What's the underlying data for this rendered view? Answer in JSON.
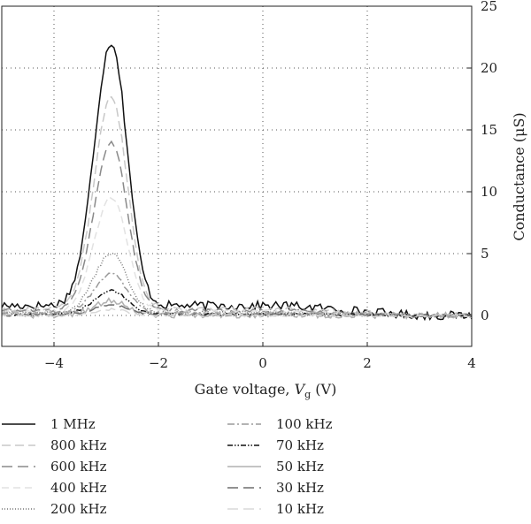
{
  "chart_data": {
    "type": "line",
    "xlabel": "Gate voltage, ",
    "xlabel_sub_symbol": "V",
    "xlabel_sub": "g",
    "xlabel_unit": " (V)",
    "ylabel": "Conductance (μS)",
    "xlim": [
      -5,
      4
    ],
    "ylim": [
      -2.5,
      25
    ],
    "x_ticks": [
      -4,
      -2,
      0,
      2,
      4
    ],
    "x_tick_labels": [
      "−4",
      "−2",
      "0",
      "2",
      "4"
    ],
    "y_ticks": [
      0,
      5,
      10,
      15,
      20,
      25
    ],
    "y_tick_labels": [
      "0",
      "5",
      "10",
      "15",
      "20",
      "25"
    ],
    "y_axis_position": "right",
    "grid": true,
    "grid_style": "dotted",
    "legend_position": "bottom",
    "peak_center": -2.9,
    "series": [
      {
        "name": "1 MHz",
        "color": "#111111",
        "dash": "",
        "peak": 21.3,
        "baseline": 0.8,
        "noise": 0.35
      },
      {
        "name": "800 kHz",
        "color": "#c8c8c8",
        "dash": "10,5",
        "peak": 17.2,
        "baseline": 0.5,
        "noise": 0.2
      },
      {
        "name": "600 kHz",
        "color": "#8a8a8a",
        "dash": "12,6",
        "peak": 13.6,
        "baseline": 0.4,
        "noise": 0.15
      },
      {
        "name": "400 kHz",
        "color": "#e2e2e2",
        "dash": "8,5",
        "peak": 9.3,
        "baseline": 0.3,
        "noise": 0.15
      },
      {
        "name": "200 kHz",
        "color": "#777777",
        "dash": "1,2",
        "peak": 4.8,
        "baseline": 0.2,
        "noise": 0.15
      },
      {
        "name": "100 kHz",
        "color": "#9a9a9a",
        "dash": "8,3,2,3",
        "peak": 3.2,
        "baseline": 0.15,
        "noise": 0.12
      },
      {
        "name": "70 kHz",
        "color": "#111111",
        "dash": "6,2,1.5,2,1.5,2",
        "peak": 1.9,
        "baseline": 0.1,
        "noise": 0.1
      },
      {
        "name": "50 kHz",
        "color": "#b0b0b0",
        "dash": "",
        "peak": 1.1,
        "baseline": 0.05,
        "noise": 0.25
      },
      {
        "name": "30 kHz",
        "color": "#6e6e6e",
        "dash": "12,6",
        "peak": 0.8,
        "baseline": 0.05,
        "noise": 0.1
      },
      {
        "name": "10 kHz",
        "color": "#d8d8d8",
        "dash": "12,6",
        "peak": 0.5,
        "baseline": 0.0,
        "noise": 0.1
      }
    ]
  }
}
